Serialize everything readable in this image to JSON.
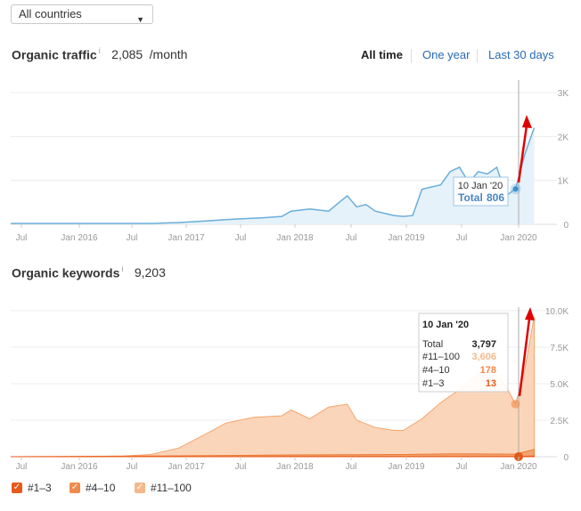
{
  "country_select": {
    "value": "All countries"
  },
  "traffic": {
    "title": "Organic traffic",
    "info": "i",
    "value": "2,085",
    "unit": "/month",
    "ranges": [
      "All time",
      "One year",
      "Last 30 days"
    ],
    "active_range": "All time",
    "tooltip": {
      "date": "10 Jan '20",
      "total_label": "Total",
      "total_value": "806"
    }
  },
  "keywords": {
    "title": "Organic keywords",
    "info": "i",
    "value": "9,203",
    "tooltip": {
      "date": "10 Jan '20",
      "rows": [
        {
          "label": "Total",
          "value": "3,797",
          "color": "#222222"
        },
        {
          "label": "#11–100",
          "value": "3,606",
          "color": "#f5b88a"
        },
        {
          "label": "#4–10",
          "value": "178",
          "color": "#f08a4b"
        },
        {
          "label": "#1–3",
          "value": "13",
          "color": "#e8591a"
        }
      ]
    },
    "legend": [
      {
        "label": "#1–3",
        "color": "#e8591a"
      },
      {
        "label": "#4–10",
        "color": "#f08a4b"
      },
      {
        "label": "#11–100",
        "color": "#f5b88a"
      }
    ]
  },
  "chart_data": [
    {
      "type": "area",
      "title": "Organic traffic",
      "x_ticks": [
        "Jul",
        "Jan 2016",
        "Jul",
        "Jan 2017",
        "Jul",
        "Jan 2018",
        "Jul",
        "Jan 2019",
        "Jul",
        "Jan 2020"
      ],
      "y_ticks": [
        "3K",
        "2K",
        "1K",
        "0"
      ],
      "ylim": [
        0,
        3000
      ],
      "grid": true,
      "color": "#6aaed9",
      "x": [
        "2015-07",
        "2015-10",
        "2016-01",
        "2016-04",
        "2016-07",
        "2016-10",
        "2017-01",
        "2017-04",
        "2017-07",
        "2017-10",
        "2017-12",
        "2018-01",
        "2018-03",
        "2018-05",
        "2018-07",
        "2018-08",
        "2018-09",
        "2018-10",
        "2018-12",
        "2019-01",
        "2019-02",
        "2019-03",
        "2019-05",
        "2019-06",
        "2019-07",
        "2019-08",
        "2019-09",
        "2019-10",
        "2019-11",
        "2019-12",
        "2020-01",
        "2020-02",
        "2020-03"
      ],
      "y": [
        20,
        20,
        20,
        20,
        20,
        20,
        40,
        80,
        120,
        150,
        180,
        300,
        350,
        300,
        650,
        400,
        450,
        300,
        200,
        180,
        200,
        800,
        900,
        1200,
        1300,
        950,
        1200,
        1150,
        1300,
        650,
        806,
        1600,
        2200
      ]
    },
    {
      "type": "area",
      "title": "Organic keywords",
      "x_ticks": [
        "Jul",
        "Jan 2016",
        "Jul",
        "Jan 2017",
        "Jul",
        "Jan 2018",
        "Jul",
        "Jan 2019",
        "Jul",
        "Jan 2020"
      ],
      "y_ticks": [
        "10.0K",
        "7.5K",
        "5.0K",
        "2.5K",
        "0"
      ],
      "ylim": [
        0,
        10000
      ],
      "grid": true,
      "series": [
        {
          "name": "#11–100",
          "color": "#f5b88a",
          "x": [
            "2015-07",
            "2016-01",
            "2016-07",
            "2016-10",
            "2017-01",
            "2017-04",
            "2017-06",
            "2017-09",
            "2017-12",
            "2018-01",
            "2018-03",
            "2018-05",
            "2018-07",
            "2018-08",
            "2018-10",
            "2018-12",
            "2019-01",
            "2019-03",
            "2019-05",
            "2019-07",
            "2019-08",
            "2019-10",
            "2019-12",
            "2020-01",
            "2020-02",
            "2020-03"
          ],
          "y": [
            0,
            0,
            50,
            150,
            600,
            1600,
            2300,
            2700,
            2800,
            3200,
            2600,
            3400,
            3600,
            2500,
            2000,
            1800,
            1800,
            2600,
            3700,
            4600,
            5200,
            6200,
            4800,
            3606,
            6000,
            9600
          ]
        },
        {
          "name": "#4–10",
          "color": "#f08a4b",
          "x": [
            "2015-07",
            "2017-01",
            "2018-01",
            "2019-01",
            "2019-07",
            "2020-01",
            "2020-03"
          ],
          "y": [
            0,
            60,
            120,
            150,
            200,
            178,
            500
          ]
        },
        {
          "name": "#1–3",
          "color": "#e8591a",
          "x": [
            "2015-07",
            "2017-01",
            "2018-01",
            "2019-01",
            "2020-01",
            "2020-03"
          ],
          "y": [
            0,
            5,
            10,
            10,
            13,
            40
          ]
        }
      ]
    }
  ]
}
